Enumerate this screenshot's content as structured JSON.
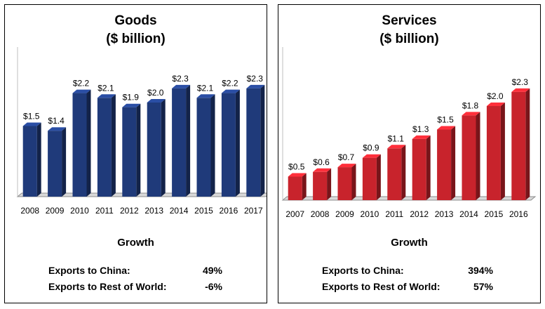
{
  "charts": [
    {
      "title_line1": "Goods",
      "title_line2": "($ billion)",
      "growth_heading": "Growth",
      "growth_rows": [
        {
          "label": "Exports to China:",
          "value": "49%"
        },
        {
          "label": "Exports to Rest of World:",
          "value": "-6%"
        }
      ]
    },
    {
      "title_line1": "Services",
      "title_line2": "($ billion)",
      "growth_heading": "Growth",
      "growth_rows": [
        {
          "label": "Exports to China:",
          "value": "394%"
        },
        {
          "label": "Exports to Rest of World:",
          "value": "57%"
        }
      ]
    }
  ],
  "chart_data": [
    {
      "type": "bar",
      "title": "Goods ($ billion)",
      "categories": [
        "2008",
        "2009",
        "2010",
        "2011",
        "2012",
        "2013",
        "2014",
        "2015",
        "2016",
        "2017"
      ],
      "values": [
        1.5,
        1.4,
        2.2,
        2.1,
        1.9,
        2.0,
        2.3,
        2.1,
        2.2,
        2.3
      ],
      "data_labels": [
        "$1.5",
        "$1.4",
        "$2.2",
        "$2.1",
        "$1.9",
        "$2.0",
        "$2.3",
        "$2.1",
        "$2.2",
        "$2.3"
      ],
      "color": "#1f3a7a",
      "ylim": [
        0,
        2.6
      ],
      "grid": false
    },
    {
      "type": "bar",
      "title": "Services ($ billion)",
      "categories": [
        "2007",
        "2008",
        "2009",
        "2010",
        "2011",
        "2012",
        "2013",
        "2014",
        "2015",
        "2016"
      ],
      "values": [
        0.5,
        0.6,
        0.7,
        0.9,
        1.1,
        1.3,
        1.5,
        1.8,
        2.0,
        2.3
      ],
      "data_labels": [
        "$0.5",
        "$0.6",
        "$0.7",
        "$0.9",
        "$1.1",
        "$1.3",
        "$1.5",
        "$1.8",
        "$2.0",
        "$2.3"
      ],
      "color": "#c8232c",
      "ylim": [
        0,
        2.6
      ],
      "grid": false
    }
  ]
}
